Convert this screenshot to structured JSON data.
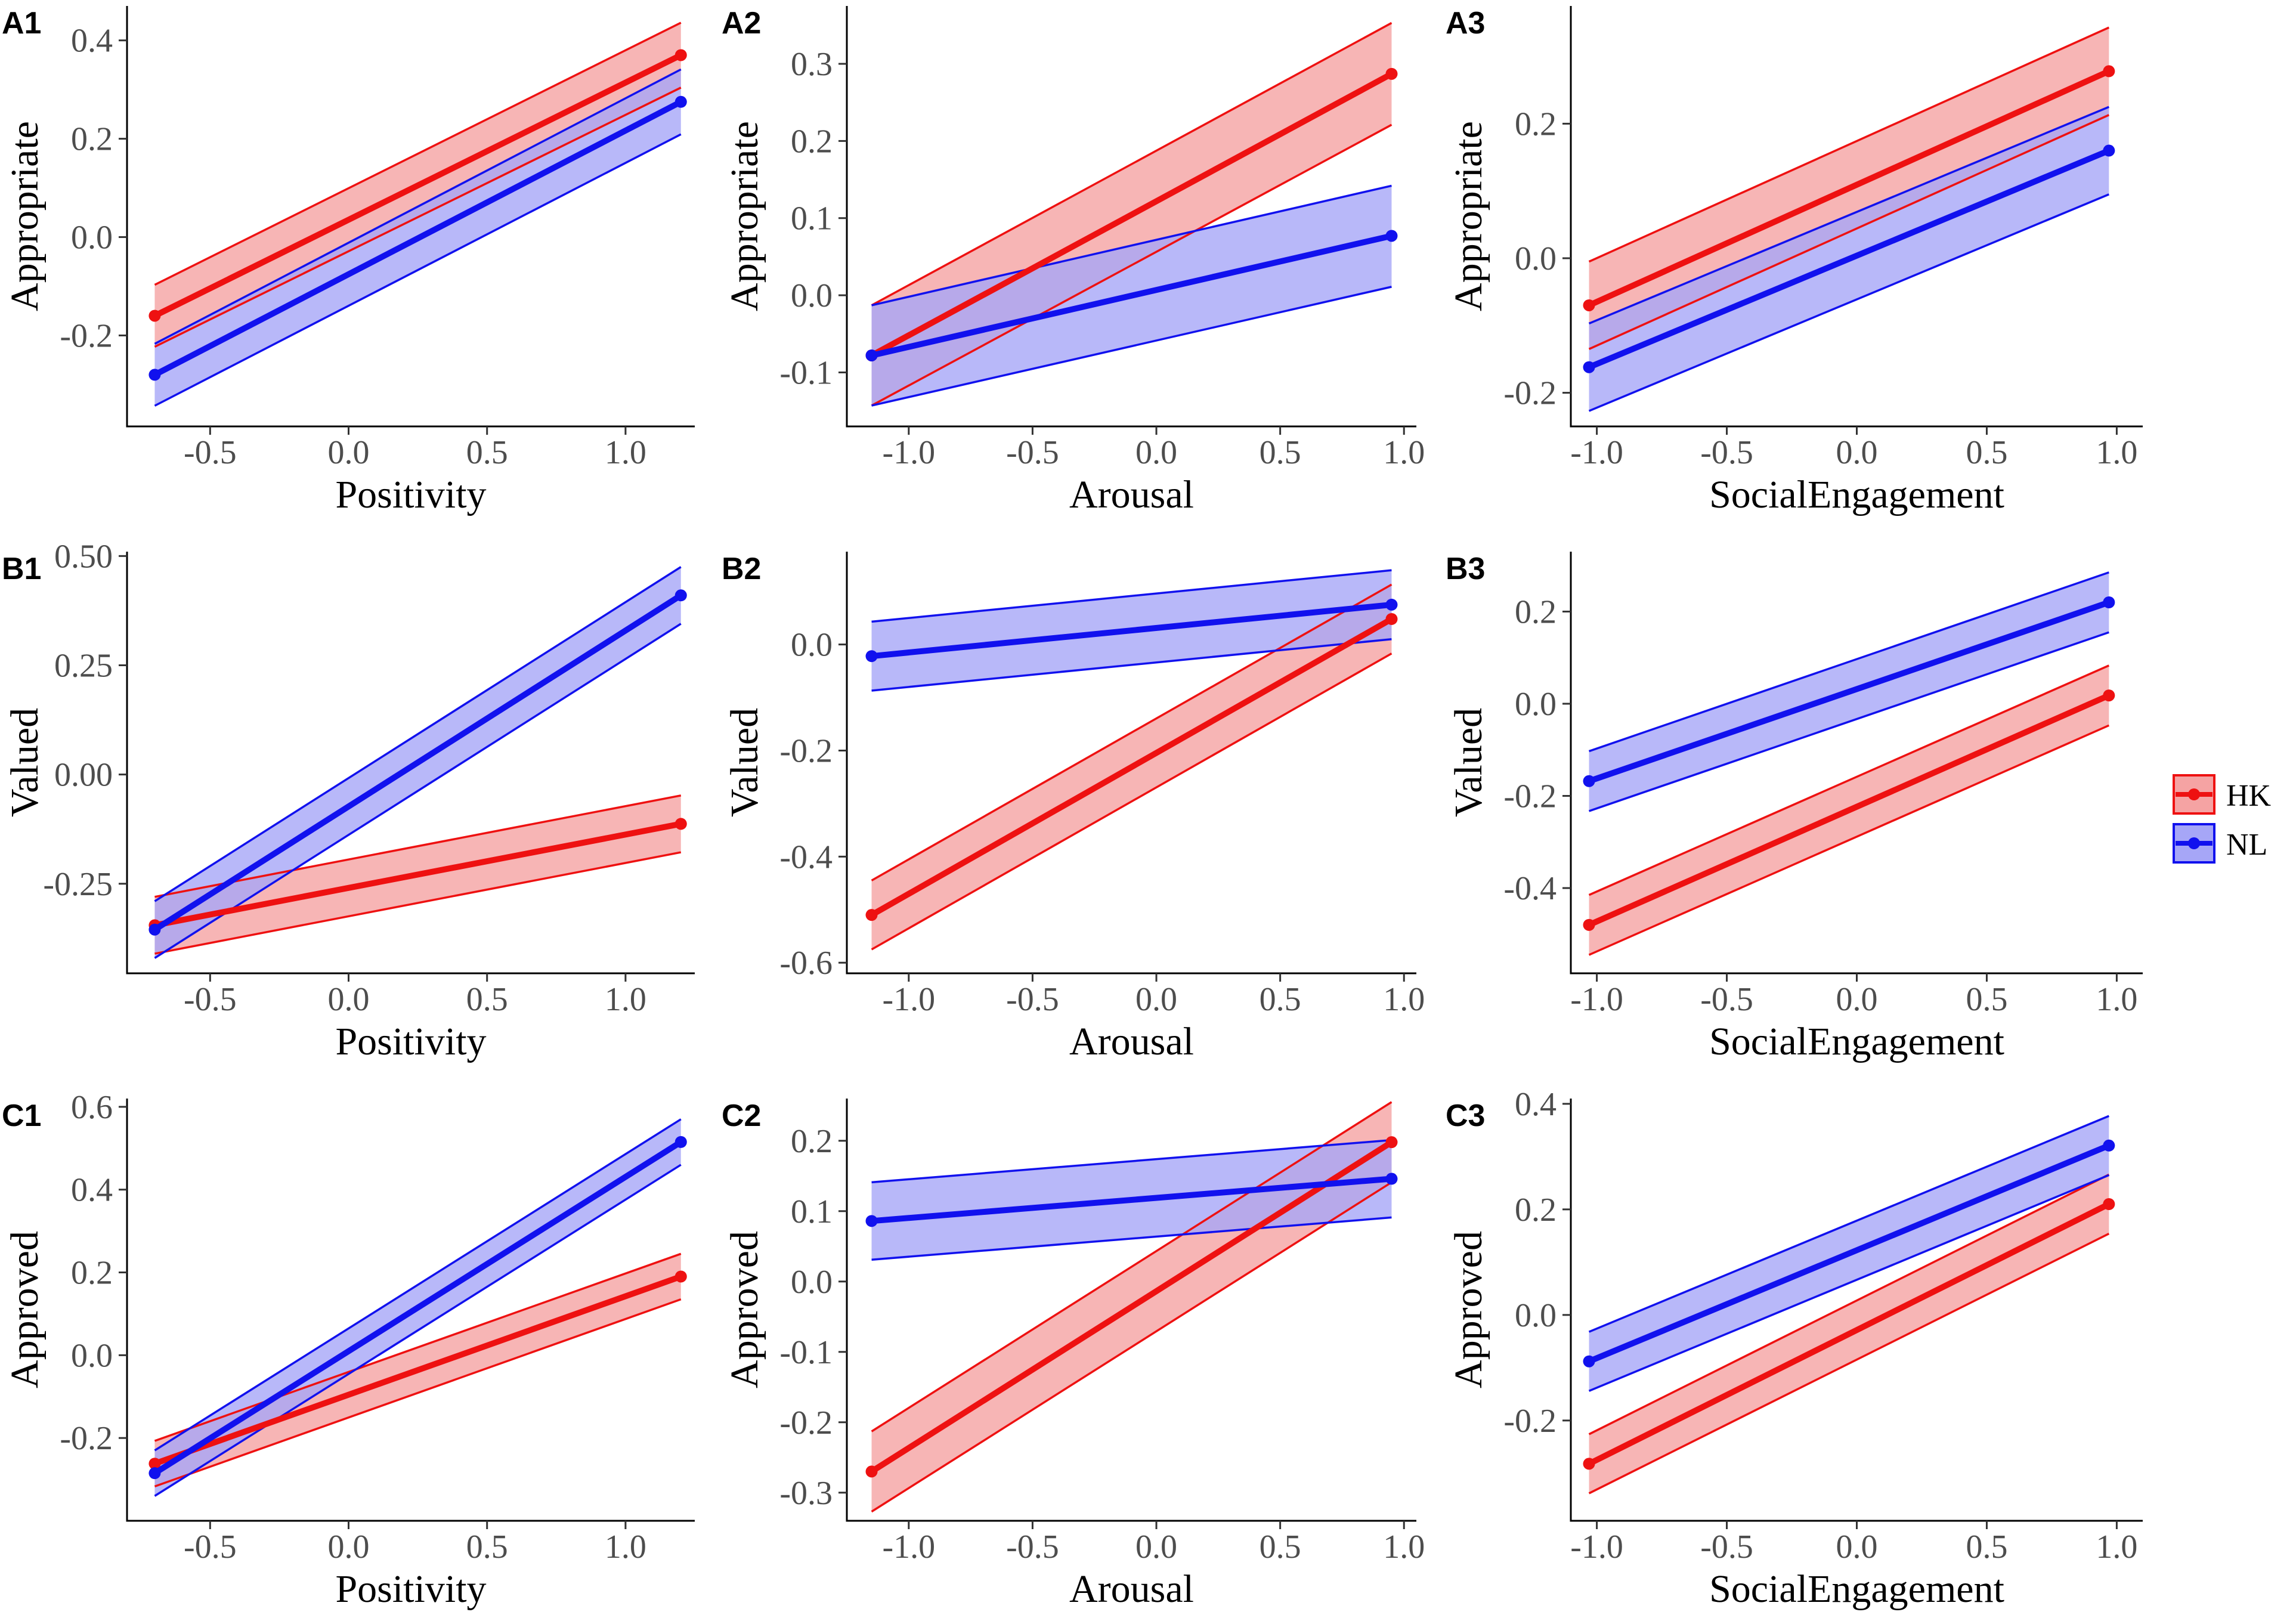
{
  "colors": {
    "HK_line": "#ee1111",
    "HK_fill": "#f5a3a3",
    "NL_line": "#1111ee",
    "NL_fill": "#a6a6f7",
    "axis": "#000000",
    "tick_text": "#4d4d4d"
  },
  "legend": {
    "items": [
      {
        "key": "HK",
        "label": "HK"
      },
      {
        "key": "NL",
        "label": "NL"
      }
    ]
  },
  "chart_data": [
    {
      "panel": "A1",
      "type": "line",
      "xlabel": "Positivity",
      "ylabel": "Appropriate",
      "xlim": [
        -0.8,
        1.25
      ],
      "ylim": [
        -0.385,
        0.47
      ],
      "xticks": [
        -0.5,
        0.0,
        0.5,
        1.0
      ],
      "xtick_labels": [
        "-0.5",
        "0.0",
        "0.5",
        "1.0"
      ],
      "yticks": [
        -0.2,
        0.0,
        0.2,
        0.4
      ],
      "ytick_labels": [
        "-0.2",
        "0.0",
        "0.2",
        "0.4"
      ],
      "series": [
        {
          "name": "HK",
          "x": [
            -0.7,
            1.2
          ],
          "y": [
            -0.16,
            0.37
          ],
          "lower": [
            -0.223,
            0.304
          ],
          "upper": [
            -0.097,
            0.436
          ]
        },
        {
          "name": "NL",
          "x": [
            -0.7,
            1.2
          ],
          "y": [
            -0.28,
            0.275
          ],
          "lower": [
            -0.343,
            0.209
          ],
          "upper": [
            -0.217,
            0.341
          ]
        }
      ]
    },
    {
      "panel": "A2",
      "type": "line",
      "xlabel": "Arousal",
      "ylabel": "Appropriate",
      "xlim": [
        -1.25,
        1.05
      ],
      "ylim": [
        -0.17,
        0.375
      ],
      "xticks": [
        -1.0,
        -0.5,
        0.0,
        0.5,
        1.0
      ],
      "xtick_labels": [
        "-1.0",
        "-0.5",
        "0.0",
        "0.5",
        "1.0"
      ],
      "yticks": [
        -0.1,
        0.0,
        0.1,
        0.2,
        0.3
      ],
      "ytick_labels": [
        "-0.1",
        "0.0",
        "0.1",
        "0.2",
        "0.3"
      ],
      "series": [
        {
          "name": "HK",
          "x": [
            -1.15,
            0.95
          ],
          "y": [
            -0.078,
            0.287
          ],
          "lower": [
            -0.143,
            0.221
          ],
          "upper": [
            -0.013,
            0.353
          ]
        },
        {
          "name": "NL",
          "x": [
            -1.15,
            0.95
          ],
          "y": [
            -0.078,
            0.077
          ],
          "lower": [
            -0.143,
            0.011
          ],
          "upper": [
            -0.013,
            0.142
          ]
        }
      ]
    },
    {
      "panel": "A3",
      "type": "line",
      "xlabel": "SocialEngagement",
      "ylabel": "Appropriate",
      "xlim": [
        -1.1,
        1.1
      ],
      "ylim": [
        -0.25,
        0.375
      ],
      "xticks": [
        -1.0,
        -0.5,
        0.0,
        0.5,
        1.0
      ],
      "xtick_labels": [
        "-1.0",
        "-0.5",
        "0.0",
        "0.5",
        "1.0"
      ],
      "yticks": [
        -0.2,
        0.0,
        0.2
      ],
      "ytick_labels": [
        "-0.2",
        "0.0",
        "0.2"
      ],
      "series": [
        {
          "name": "HK",
          "x": [
            -1.03,
            0.97
          ],
          "y": [
            -0.07,
            0.278
          ],
          "lower": [
            -0.135,
            0.213
          ],
          "upper": [
            -0.005,
            0.343
          ]
        },
        {
          "name": "NL",
          "x": [
            -1.03,
            0.97
          ],
          "y": [
            -0.162,
            0.16
          ],
          "lower": [
            -0.227,
            0.095
          ],
          "upper": [
            -0.097,
            0.225
          ]
        }
      ]
    },
    {
      "panel": "B1",
      "type": "line",
      "xlabel": "Positivity",
      "ylabel": "Valued",
      "xlim": [
        -0.8,
        1.25
      ],
      "ylim": [
        -0.455,
        0.51
      ],
      "xticks": [
        -0.5,
        0.0,
        0.5,
        1.0
      ],
      "xtick_labels": [
        "-0.5",
        "0.0",
        "0.5",
        "1.0"
      ],
      "yticks": [
        -0.25,
        0.0,
        0.25,
        0.5
      ],
      "ytick_labels": [
        "-0.25",
        "0.00",
        "0.25",
        "0.50"
      ],
      "series": [
        {
          "name": "HK",
          "x": [
            -0.7,
            1.2
          ],
          "y": [
            -0.345,
            -0.113
          ],
          "lower": [
            -0.41,
            -0.178
          ],
          "upper": [
            -0.28,
            -0.048
          ]
        },
        {
          "name": "NL",
          "x": [
            -0.7,
            1.2
          ],
          "y": [
            -0.355,
            0.41
          ],
          "lower": [
            -0.42,
            0.345
          ],
          "upper": [
            -0.29,
            0.475
          ]
        }
      ]
    },
    {
      "panel": "B2",
      "type": "line",
      "xlabel": "Arousal",
      "ylabel": "Valued",
      "xlim": [
        -1.25,
        1.05
      ],
      "ylim": [
        -0.62,
        0.175
      ],
      "xticks": [
        -1.0,
        -0.5,
        0.0,
        0.5,
        1.0
      ],
      "xtick_labels": [
        "-1.0",
        "-0.5",
        "0.0",
        "0.5",
        "1.0"
      ],
      "yticks": [
        -0.6,
        -0.4,
        -0.2,
        0.0
      ],
      "ytick_labels": [
        "-0.6",
        "-0.4",
        "-0.2",
        "0.0"
      ],
      "series": [
        {
          "name": "HK",
          "x": [
            -1.15,
            0.95
          ],
          "y": [
            -0.51,
            0.048
          ],
          "lower": [
            -0.575,
            -0.017
          ],
          "upper": [
            -0.445,
            0.113
          ]
        },
        {
          "name": "NL",
          "x": [
            -1.15,
            0.95
          ],
          "y": [
            -0.022,
            0.075
          ],
          "lower": [
            -0.087,
            0.01
          ],
          "upper": [
            0.043,
            0.14
          ]
        }
      ]
    },
    {
      "panel": "B3",
      "type": "line",
      "xlabel": "SocialEngagement",
      "ylabel": "Valued",
      "xlim": [
        -1.1,
        1.1
      ],
      "ylim": [
        -0.585,
        0.33
      ],
      "xticks": [
        -1.0,
        -0.5,
        0.0,
        0.5,
        1.0
      ],
      "xtick_labels": [
        "-1.0",
        "-0.5",
        "0.0",
        "0.5",
        "1.0"
      ],
      "yticks": [
        -0.4,
        -0.2,
        0.0,
        0.2
      ],
      "ytick_labels": [
        "-0.4",
        "-0.2",
        "0.0",
        "0.2"
      ],
      "series": [
        {
          "name": "HK",
          "x": [
            -1.03,
            0.97
          ],
          "y": [
            -0.48,
            0.018
          ],
          "lower": [
            -0.545,
            -0.047
          ],
          "upper": [
            -0.415,
            0.083
          ]
        },
        {
          "name": "NL",
          "x": [
            -1.03,
            0.97
          ],
          "y": [
            -0.168,
            0.22
          ],
          "lower": [
            -0.233,
            0.155
          ],
          "upper": [
            -0.103,
            0.285
          ]
        }
      ]
    },
    {
      "panel": "C1",
      "type": "line",
      "xlabel": "Positivity",
      "ylabel": "Approved",
      "xlim": [
        -0.8,
        1.25
      ],
      "ylim": [
        -0.4,
        0.62
      ],
      "xticks": [
        -0.5,
        0.0,
        0.5,
        1.0
      ],
      "xtick_labels": [
        "-0.5",
        "0.0",
        "0.5",
        "1.0"
      ],
      "yticks": [
        -0.2,
        0.0,
        0.2,
        0.4,
        0.6
      ],
      "ytick_labels": [
        "-0.2",
        "0.0",
        "0.2",
        "0.4",
        "0.6"
      ],
      "series": [
        {
          "name": "HK",
          "x": [
            -0.7,
            1.2
          ],
          "y": [
            -0.262,
            0.19
          ],
          "lower": [
            -0.317,
            0.135
          ],
          "upper": [
            -0.207,
            0.245
          ]
        },
        {
          "name": "NL",
          "x": [
            -0.7,
            1.2
          ],
          "y": [
            -0.285,
            0.515
          ],
          "lower": [
            -0.34,
            0.46
          ],
          "upper": [
            -0.23,
            0.57
          ]
        }
      ]
    },
    {
      "panel": "C2",
      "type": "line",
      "xlabel": "Arousal",
      "ylabel": "Approved",
      "xlim": [
        -1.25,
        1.05
      ],
      "ylim": [
        -0.34,
        0.26
      ],
      "xticks": [
        -1.0,
        -0.5,
        0.0,
        0.5,
        1.0
      ],
      "xtick_labels": [
        "-1.0",
        "-0.5",
        "0.0",
        "0.5",
        "1.0"
      ],
      "yticks": [
        -0.3,
        -0.2,
        -0.1,
        0.0,
        0.1,
        0.2
      ],
      "ytick_labels": [
        "-0.3",
        "-0.2",
        "-0.1",
        "0.0",
        "0.1",
        "0.2"
      ],
      "series": [
        {
          "name": "HK",
          "x": [
            -1.15,
            0.95
          ],
          "y": [
            -0.27,
            0.198
          ],
          "lower": [
            -0.327,
            0.141
          ],
          "upper": [
            -0.213,
            0.255
          ]
        },
        {
          "name": "NL",
          "x": [
            -1.15,
            0.95
          ],
          "y": [
            0.086,
            0.146
          ],
          "lower": [
            0.031,
            0.091
          ],
          "upper": [
            0.141,
            0.201
          ]
        }
      ]
    },
    {
      "panel": "C3",
      "type": "line",
      "xlabel": "SocialEngagement",
      "ylabel": "Approved",
      "xlim": [
        -1.1,
        1.1
      ],
      "ylim": [
        -0.39,
        0.41
      ],
      "xticks": [
        -1.0,
        -0.5,
        0.0,
        0.5,
        1.0
      ],
      "xtick_labels": [
        "-1.0",
        "-0.5",
        "0.0",
        "0.5",
        "1.0"
      ],
      "yticks": [
        -0.2,
        0.0,
        0.2,
        0.4
      ],
      "ytick_labels": [
        "-0.2",
        "0.0",
        "0.2",
        "0.4"
      ],
      "series": [
        {
          "name": "HK",
          "x": [
            -1.03,
            0.97
          ],
          "y": [
            -0.282,
            0.21
          ],
          "lower": [
            -0.338,
            0.154
          ],
          "upper": [
            -0.226,
            0.266
          ]
        },
        {
          "name": "NL",
          "x": [
            -1.03,
            0.97
          ],
          "y": [
            -0.088,
            0.321
          ],
          "lower": [
            -0.144,
            0.265
          ],
          "upper": [
            -0.032,
            0.377
          ]
        }
      ]
    }
  ]
}
